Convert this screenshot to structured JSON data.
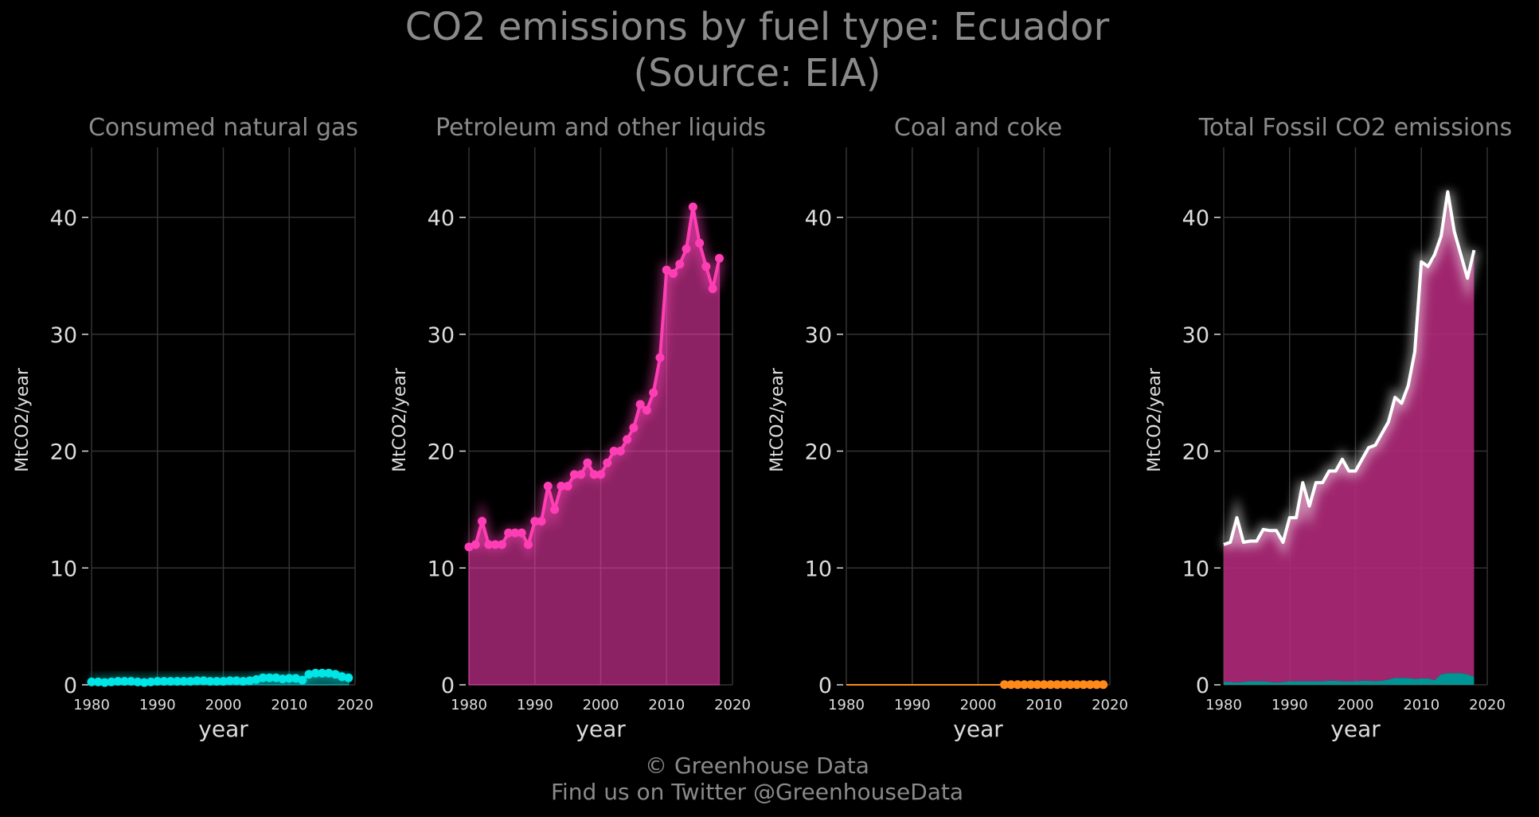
{
  "figure": {
    "title_line1": "CO2 emissions by fuel type: Ecuador",
    "title_line2": "(Source: EIA)",
    "footer_line1": "© Greenhouse Data",
    "footer_line2": "Find us on Twitter @GreenhouseData"
  },
  "chart_data": [
    {
      "type": "area",
      "title": "Consumed natural gas",
      "xlabel": "year",
      "ylabel": "MtCO2/year",
      "xlim": [
        1980,
        2020
      ],
      "ylim": [
        0,
        46
      ],
      "xticks": [
        1980,
        1990,
        2000,
        2010,
        2020
      ],
      "yticks": [
        0,
        10,
        20,
        30,
        40
      ],
      "grid": true,
      "color": "#00e5e5",
      "markers": true,
      "x": [
        1980,
        1981,
        1982,
        1983,
        1984,
        1985,
        1986,
        1987,
        1988,
        1989,
        1990,
        1991,
        1992,
        1993,
        1994,
        1995,
        1996,
        1997,
        1998,
        1999,
        2000,
        2001,
        2002,
        2003,
        2004,
        2005,
        2006,
        2007,
        2008,
        2009,
        2010,
        2011,
        2012,
        2013,
        2014,
        2015,
        2016,
        2017,
        2018,
        2019
      ],
      "values": [
        0.25,
        0.25,
        0.2,
        0.25,
        0.3,
        0.3,
        0.3,
        0.25,
        0.2,
        0.25,
        0.3,
        0.3,
        0.3,
        0.3,
        0.3,
        0.3,
        0.35,
        0.35,
        0.3,
        0.3,
        0.3,
        0.35,
        0.35,
        0.3,
        0.35,
        0.45,
        0.6,
        0.6,
        0.6,
        0.5,
        0.55,
        0.55,
        0.4,
        0.9,
        1.0,
        1.0,
        1.0,
        0.9,
        0.7,
        0.6
      ]
    },
    {
      "type": "area",
      "title": "Petroleum and other liquids",
      "xlabel": "year",
      "ylabel": "MtCO2/year",
      "xlim": [
        1980,
        2020
      ],
      "ylim": [
        0,
        46
      ],
      "xticks": [
        1980,
        1990,
        2000,
        2010,
        2020
      ],
      "yticks": [
        0,
        10,
        20,
        30,
        40
      ],
      "grid": true,
      "color": "#ff3eb5",
      "markers": true,
      "x": [
        1980,
        1981,
        1982,
        1983,
        1984,
        1985,
        1986,
        1987,
        1988,
        1989,
        1990,
        1991,
        1992,
        1993,
        1994,
        1995,
        1996,
        1997,
        1998,
        1999,
        2000,
        2001,
        2002,
        2003,
        2004,
        2005,
        2006,
        2007,
        2008,
        2009,
        2010,
        2011,
        2012,
        2013,
        2014,
        2015,
        2016,
        2017,
        2018
      ],
      "values": [
        11.8,
        12.0,
        14.0,
        12.0,
        12.0,
        12.0,
        13.0,
        13.0,
        13.0,
        12.0,
        14.0,
        14.0,
        17.0,
        15.0,
        17.0,
        17.0,
        18.0,
        18.0,
        19.0,
        18.0,
        18.0,
        19.0,
        20.0,
        20.0,
        21.0,
        22.0,
        24.0,
        23.5,
        25.0,
        28.0,
        35.5,
        35.2,
        36.0,
        37.3,
        40.9,
        37.8,
        35.8,
        33.9,
        36.5
      ]
    },
    {
      "type": "area",
      "title": "Coal and coke",
      "xlabel": "year",
      "ylabel": "MtCO2/year",
      "xlim": [
        1980,
        2020
      ],
      "ylim": [
        0,
        46
      ],
      "xticks": [
        1980,
        1990,
        2000,
        2010,
        2020
      ],
      "yticks": [
        0,
        10,
        20,
        30,
        40
      ],
      "grid": true,
      "color": "#ff8a1a",
      "markers": true,
      "x": [
        1980,
        1981,
        1982,
        1983,
        1984,
        1985,
        1986,
        1987,
        1988,
        1989,
        1990,
        1991,
        1992,
        1993,
        1994,
        1995,
        1996,
        1997,
        1998,
        1999,
        2000,
        2001,
        2002,
        2003,
        2004,
        2005,
        2006,
        2007,
        2008,
        2009,
        2010,
        2011,
        2012,
        2013,
        2014,
        2015,
        2016,
        2017,
        2018,
        2019
      ],
      "values": [
        0,
        0,
        0,
        0,
        0,
        0,
        0,
        0,
        0,
        0,
        0,
        0,
        0,
        0,
        0,
        0,
        0,
        0,
        0,
        0,
        0,
        0,
        0,
        0,
        0.02,
        0.02,
        0.02,
        0.02,
        0.02,
        0.02,
        0.02,
        0.02,
        0.02,
        0.02,
        0.02,
        0.02,
        0.02,
        0.02,
        0.02,
        0.02
      ],
      "marker_from": 2004
    },
    {
      "type": "area",
      "title": "Total Fossil CO2 emissions",
      "xlabel": "year",
      "ylabel": "MtCO2/year",
      "xlim": [
        1980,
        2020
      ],
      "ylim": [
        0,
        46
      ],
      "xticks": [
        1980,
        1990,
        2000,
        2010,
        2020
      ],
      "yticks": [
        0,
        10,
        20,
        30,
        40
      ],
      "grid": true,
      "color": "#ffffff",
      "markers": false,
      "x": [
        1980,
        1981,
        1982,
        1983,
        1984,
        1985,
        1986,
        1987,
        1988,
        1989,
        1990,
        1991,
        1992,
        1993,
        1994,
        1995,
        1996,
        1997,
        1998,
        1999,
        2000,
        2001,
        2002,
        2003,
        2004,
        2005,
        2006,
        2007,
        2008,
        2009,
        2010,
        2011,
        2012,
        2013,
        2014,
        2015,
        2016,
        2017,
        2018
      ],
      "values": [
        12.0,
        12.2,
        14.3,
        12.2,
        12.3,
        12.3,
        13.3,
        13.2,
        13.2,
        12.2,
        14.3,
        14.3,
        17.3,
        15.3,
        17.3,
        17.3,
        18.3,
        18.3,
        19.3,
        18.3,
        18.3,
        19.3,
        20.3,
        20.5,
        21.5,
        22.5,
        24.6,
        24.1,
        25.6,
        28.5,
        36.2,
        35.8,
        36.8,
        38.4,
        42.2,
        38.8,
        36.8,
        34.8,
        37.2
      ],
      "stack_series": [
        {
          "name": "",
          "color": "#00a5a5",
          "values": [
            0.25,
            0.25,
            0.2,
            0.25,
            0.3,
            0.3,
            0.3,
            0.25,
            0.2,
            0.25,
            0.3,
            0.3,
            0.3,
            0.3,
            0.3,
            0.3,
            0.35,
            0.35,
            0.3,
            0.3,
            0.3,
            0.35,
            0.35,
            0.3,
            0.35,
            0.45,
            0.6,
            0.6,
            0.6,
            0.5,
            0.55,
            0.55,
            0.4,
            0.9,
            1.0,
            1.0,
            1.0,
            0.9,
            0.7
          ]
        },
        {
          "name": "",
          "color": "#b02a7a",
          "values": [
            11.8,
            12.0,
            14.0,
            12.0,
            12.0,
            12.0,
            13.0,
            13.0,
            13.0,
            12.0,
            14.0,
            14.0,
            17.0,
            15.0,
            17.0,
            17.0,
            18.0,
            18.0,
            19.0,
            18.0,
            18.0,
            19.0,
            20.0,
            20.0,
            21.0,
            22.0,
            24.0,
            23.5,
            25.0,
            28.0,
            35.5,
            35.2,
            36.0,
            37.3,
            40.9,
            37.8,
            35.8,
            33.9,
            36.5
          ]
        }
      ]
    }
  ]
}
